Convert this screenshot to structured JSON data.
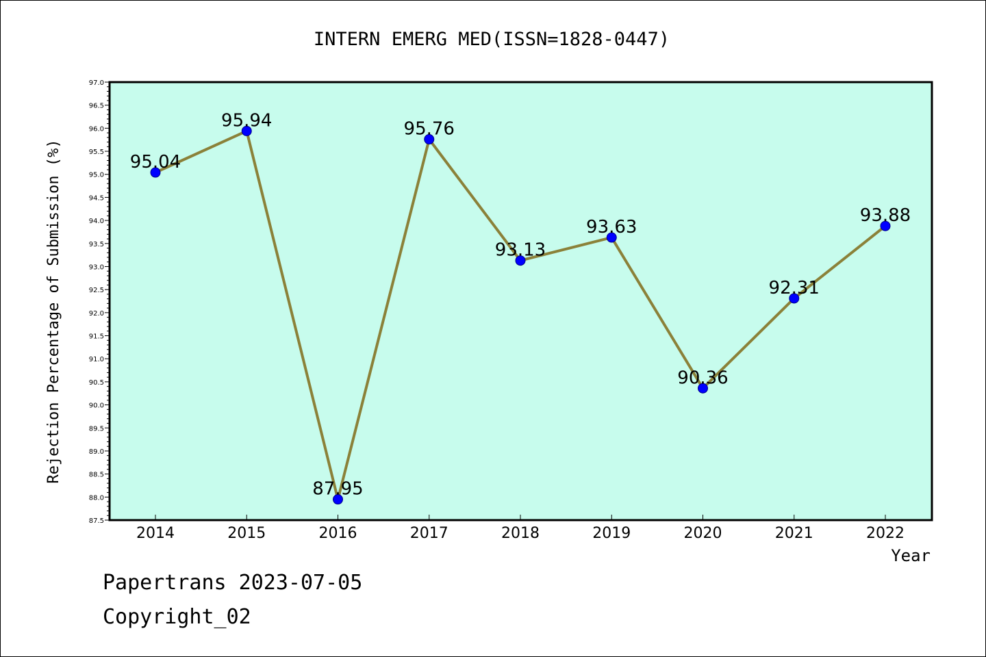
{
  "chart_data": {
    "type": "line",
    "title": "INTERN EMERG MED(ISSN=1828-0447)",
    "xlabel": "Year",
    "ylabel": "Rejection Percentage of Submission (%)",
    "categories": [
      "2014",
      "2015",
      "2016",
      "2017",
      "2018",
      "2019",
      "2020",
      "2021",
      "2022"
    ],
    "series": [
      {
        "values": [
          95.04,
          95.94,
          87.95,
          95.76,
          93.13,
          93.63,
          90.36,
          92.31,
          93.88
        ],
        "labels": [
          "95.04",
          "95.94",
          "87.95",
          "95.76",
          "93.13",
          "93.63",
          "90.36",
          "92.31",
          "93.88"
        ]
      }
    ],
    "ylim": [
      87.5,
      97.0
    ],
    "yticks": [
      "87.5",
      "88.0",
      "88.5",
      "89.0",
      "89.5",
      "90.0",
      "90.5",
      "91.0",
      "91.5",
      "92.0",
      "92.5",
      "93.0",
      "93.5",
      "94.0",
      "94.5",
      "95.0",
      "95.5",
      "96.0",
      "96.5",
      "97.0"
    ],
    "grid": false,
    "colors": {
      "plot_background": "#c7fced",
      "line": "#8b8139",
      "marker": "#0000ff"
    }
  },
  "footer": {
    "line1": "Papertrans 2023-07-05",
    "line2": "Copyright_02"
  }
}
